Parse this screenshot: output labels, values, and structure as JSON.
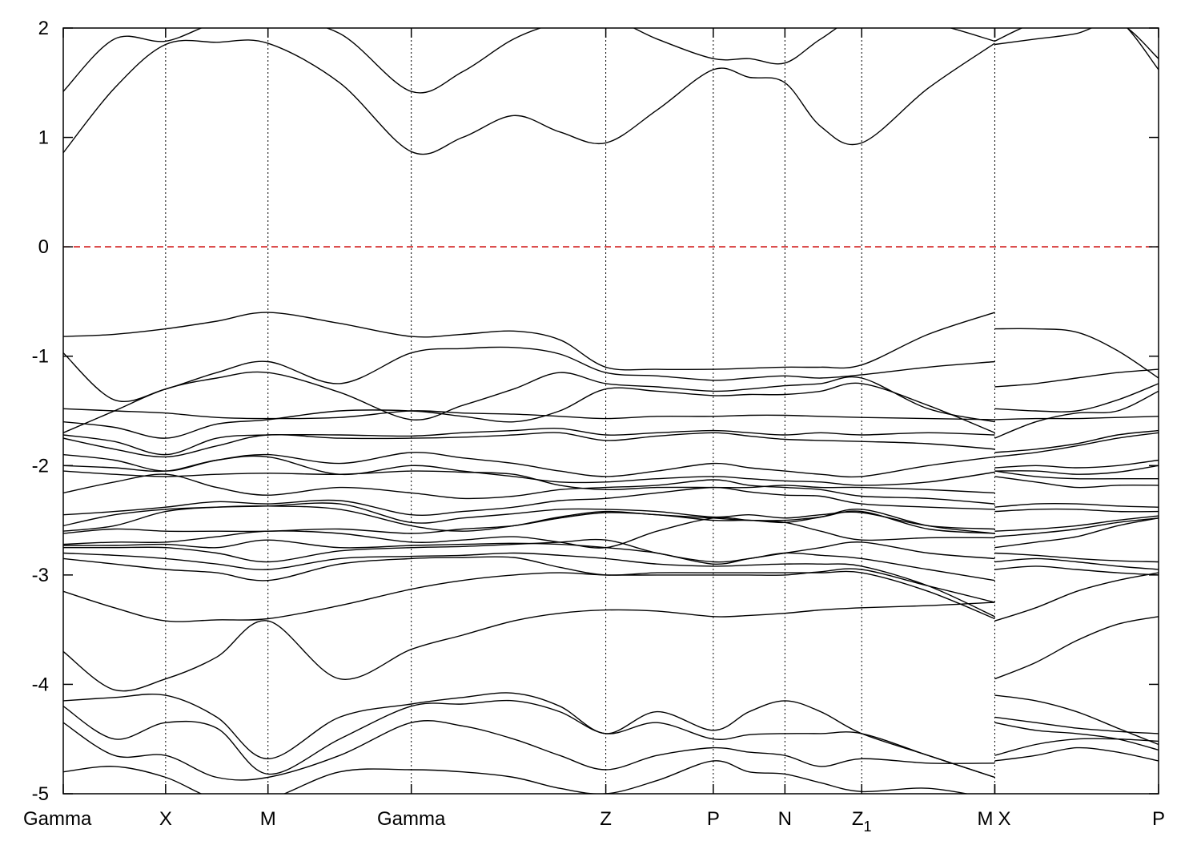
{
  "chart_data": {
    "type": "line",
    "title": "",
    "xlabel": "",
    "ylabel": "",
    "xlim": [
      0,
      10.7
    ],
    "ylim": [
      -5,
      2
    ],
    "yticks": [
      -5,
      -4,
      -3,
      -2,
      -1,
      0,
      1,
      2
    ],
    "ytick_labels": [
      "-5",
      "-4",
      "-3",
      "-2",
      "-1",
      "0",
      "1",
      "2"
    ],
    "grid": false,
    "legend": "none",
    "fermi_level": {
      "y": 0,
      "color": "#cc0000",
      "style": "dashed"
    },
    "line_color": "#000000",
    "kpoints": [
      {
        "x": 0.0,
        "label": "Gamma"
      },
      {
        "x": 1.0,
        "label": "X"
      },
      {
        "x": 2.0,
        "label": "M"
      },
      {
        "x": 3.4,
        "label": "Gamma"
      },
      {
        "x": 5.3,
        "label": "Z"
      },
      {
        "x": 6.35,
        "label": "P"
      },
      {
        "x": 7.05,
        "label": "N"
      },
      {
        "x": 7.8,
        "label": "Z",
        "sub": "1"
      },
      {
        "x": 9.1,
        "label": "M"
      },
      {
        "x": 9.1,
        "label": "X"
      },
      {
        "x": 10.7,
        "label": "P"
      }
    ],
    "segments": [
      {
        "name": "main",
        "x": [
          0.0,
          0.5,
          1.0,
          1.5,
          2.0,
          2.7,
          3.4,
          3.9,
          4.4,
          4.85,
          5.3,
          5.8,
          6.35,
          6.7,
          7.05,
          7.4,
          7.8,
          8.45,
          9.1
        ],
        "bands": [
          [
            1.42,
            1.9,
            1.88,
            2.05,
            2.1,
            1.95,
            1.42,
            1.6,
            1.9,
            2.05,
            2.1,
            1.9,
            1.72,
            1.72,
            1.68,
            1.9,
            2.1,
            2.05,
            1.88
          ],
          [
            0.86,
            1.45,
            1.85,
            1.87,
            1.86,
            1.5,
            0.87,
            1.0,
            1.2,
            1.05,
            0.95,
            1.25,
            1.62,
            1.55,
            1.5,
            1.1,
            0.95,
            1.45,
            1.86
          ],
          [
            -0.82,
            -0.8,
            -0.75,
            -0.68,
            -0.6,
            -0.7,
            -0.82,
            -0.8,
            -0.77,
            -0.85,
            -1.1,
            -1.12,
            -1.12,
            -1.11,
            -1.1,
            -1.1,
            -1.08,
            -0.8,
            -0.6
          ],
          [
            -0.97,
            -1.4,
            -1.3,
            -1.15,
            -1.05,
            -1.25,
            -0.97,
            -0.93,
            -0.92,
            -0.98,
            -1.15,
            -1.18,
            -1.22,
            -1.2,
            -1.18,
            -1.2,
            -1.17,
            -1.1,
            -1.05
          ],
          [
            -1.7,
            -1.5,
            -1.3,
            -1.2,
            -1.15,
            -1.33,
            -1.58,
            -1.45,
            -1.3,
            -1.15,
            -1.25,
            -1.28,
            -1.32,
            -1.3,
            -1.27,
            -1.25,
            -1.2,
            -1.48,
            -1.6
          ],
          [
            -1.6,
            -1.65,
            -1.75,
            -1.62,
            -1.58,
            -1.5,
            -1.5,
            -1.55,
            -1.6,
            -1.5,
            -1.3,
            -1.32,
            -1.36,
            -1.35,
            -1.35,
            -1.32,
            -1.25,
            -1.45,
            -1.7
          ],
          [
            -1.48,
            -1.5,
            -1.52,
            -1.56,
            -1.57,
            -1.56,
            -1.5,
            -1.52,
            -1.53,
            -1.55,
            -1.57,
            -1.55,
            -1.55,
            -1.54,
            -1.54,
            -1.55,
            -1.56,
            -1.57,
            -1.58
          ],
          [
            -1.72,
            -1.78,
            -1.9,
            -1.75,
            -1.72,
            -1.72,
            -1.73,
            -1.7,
            -1.68,
            -1.66,
            -1.72,
            -1.7,
            -1.68,
            -1.7,
            -1.72,
            -1.7,
            -1.72,
            -1.7,
            -1.72
          ],
          [
            -1.75,
            -1.85,
            -1.92,
            -1.82,
            -1.72,
            -1.75,
            -1.75,
            -1.74,
            -1.72,
            -1.7,
            -1.77,
            -1.73,
            -1.7,
            -1.73,
            -1.76,
            -1.77,
            -1.78,
            -1.8,
            -1.85
          ],
          [
            -1.9,
            -1.95,
            -2.05,
            -1.95,
            -1.9,
            -1.98,
            -1.88,
            -1.93,
            -1.98,
            -2.05,
            -2.1,
            -2.05,
            -1.98,
            -2.02,
            -2.05,
            -2.08,
            -2.1,
            -2.0,
            -1.92
          ],
          [
            -2.0,
            -2.02,
            -2.05,
            -1.95,
            -1.92,
            -2.08,
            -2.0,
            -2.05,
            -2.1,
            -2.15,
            -2.15,
            -2.12,
            -2.1,
            -2.12,
            -2.14,
            -2.15,
            -2.18,
            -2.15,
            -2.06
          ],
          [
            -2.05,
            -2.08,
            -2.1,
            -2.08,
            -2.07,
            -2.08,
            -2.05,
            -2.06,
            -2.08,
            -2.18,
            -2.22,
            -2.2,
            -2.2,
            -2.2,
            -2.18,
            -2.2,
            -2.2,
            -2.22,
            -2.25
          ],
          [
            -2.25,
            -2.15,
            -2.08,
            -2.2,
            -2.27,
            -2.2,
            -2.25,
            -2.3,
            -2.28,
            -2.22,
            -2.2,
            -2.18,
            -2.13,
            -2.18,
            -2.2,
            -2.22,
            -2.28,
            -2.3,
            -2.35
          ],
          [
            -2.45,
            -2.42,
            -2.38,
            -2.33,
            -2.35,
            -2.32,
            -2.45,
            -2.42,
            -2.38,
            -2.32,
            -2.3,
            -2.25,
            -2.2,
            -2.24,
            -2.27,
            -2.28,
            -2.35,
            -2.38,
            -2.4
          ],
          [
            -2.55,
            -2.45,
            -2.4,
            -2.38,
            -2.37,
            -2.35,
            -2.52,
            -2.48,
            -2.44,
            -2.4,
            -2.4,
            -2.42,
            -2.47,
            -2.45,
            -2.48,
            -2.45,
            -2.43,
            -2.55,
            -2.58
          ],
          [
            -2.6,
            -2.55,
            -2.42,
            -2.38,
            -2.37,
            -2.4,
            -2.55,
            -2.6,
            -2.55,
            -2.47,
            -2.42,
            -2.45,
            -2.48,
            -2.5,
            -2.5,
            -2.47,
            -2.42,
            -2.58,
            -2.62
          ],
          [
            -2.62,
            -2.58,
            -2.6,
            -2.6,
            -2.6,
            -2.58,
            -2.62,
            -2.58,
            -2.55,
            -2.48,
            -2.43,
            -2.45,
            -2.5,
            -2.5,
            -2.52,
            -2.47,
            -2.4,
            -2.55,
            -2.62
          ],
          [
            -2.72,
            -2.7,
            -2.7,
            -2.65,
            -2.6,
            -2.62,
            -2.7,
            -2.68,
            -2.65,
            -2.7,
            -2.75,
            -2.6,
            -2.48,
            -2.5,
            -2.52,
            -2.6,
            -2.68,
            -2.66,
            -2.66
          ],
          [
            -2.73,
            -2.73,
            -2.72,
            -2.75,
            -2.68,
            -2.75,
            -2.73,
            -2.72,
            -2.71,
            -2.72,
            -2.75,
            -2.8,
            -2.9,
            -2.85,
            -2.8,
            -2.75,
            -2.7,
            -2.8,
            -2.85
          ],
          [
            -2.75,
            -2.75,
            -2.75,
            -2.8,
            -2.88,
            -2.78,
            -2.75,
            -2.74,
            -2.72,
            -2.7,
            -2.68,
            -2.8,
            -2.88,
            -2.85,
            -2.8,
            -2.82,
            -2.85,
            -2.95,
            -3.05
          ],
          [
            -2.8,
            -2.82,
            -2.85,
            -2.9,
            -2.95,
            -2.85,
            -2.83,
            -2.82,
            -2.8,
            -2.82,
            -2.85,
            -2.9,
            -2.92,
            -2.91,
            -2.9,
            -2.9,
            -2.92,
            -3.1,
            -3.38
          ],
          [
            -2.85,
            -2.9,
            -2.95,
            -2.98,
            -3.05,
            -2.9,
            -2.85,
            -2.84,
            -2.84,
            -2.93,
            -3.0,
            -2.98,
            -2.98,
            -2.98,
            -2.98,
            -2.98,
            -2.98,
            -3.15,
            -3.4
          ],
          [
            -3.15,
            -3.3,
            -3.42,
            -3.41,
            -3.4,
            -3.28,
            -3.13,
            -3.05,
            -3.0,
            -2.98,
            -3.0,
            -3.0,
            -3.0,
            -3.0,
            -3.0,
            -2.97,
            -2.95,
            -3.1,
            -3.25
          ],
          [
            -3.7,
            -4.05,
            -3.95,
            -3.75,
            -3.42,
            -3.95,
            -3.68,
            -3.55,
            -3.42,
            -3.35,
            -3.32,
            -3.33,
            -3.38,
            -3.37,
            -3.35,
            -3.32,
            -3.3,
            -3.28,
            -3.25
          ],
          [
            -4.15,
            -4.12,
            -4.1,
            -4.3,
            -4.68,
            -4.3,
            -4.18,
            -4.12,
            -4.08,
            -4.2,
            -4.45,
            -4.25,
            -4.42,
            -4.25,
            -4.15,
            -4.25,
            -4.45,
            -4.65,
            -4.85
          ],
          [
            -4.2,
            -4.5,
            -4.35,
            -4.4,
            -4.82,
            -4.5,
            -4.2,
            -4.18,
            -4.15,
            -4.25,
            -4.45,
            -4.35,
            -4.5,
            -4.46,
            -4.45,
            -4.45,
            -4.45,
            -4.65,
            -4.85
          ],
          [
            -4.35,
            -4.65,
            -4.65,
            -4.85,
            -4.85,
            -4.65,
            -4.35,
            -4.38,
            -4.5,
            -4.65,
            -4.78,
            -4.65,
            -4.58,
            -4.62,
            -4.65,
            -4.75,
            -4.68,
            -4.72,
            -4.72
          ],
          [
            -4.8,
            -4.75,
            -4.85,
            -5.05,
            -5.05,
            -4.8,
            -4.78,
            -4.8,
            -4.85,
            -4.95,
            -5.0,
            -4.88,
            -4.7,
            -4.8,
            -4.82,
            -4.9,
            -4.98,
            -4.95,
            -5.05
          ]
        ]
      },
      {
        "name": "X-P",
        "x": [
          9.1,
          9.5,
          9.9,
          10.3,
          10.7
        ],
        "bands": [
          [
            1.85,
            1.9,
            1.95,
            2.05,
            1.72
          ],
          [
            1.88,
            2.05,
            2.1,
            2.08,
            1.62
          ],
          [
            -0.75,
            -0.75,
            -0.78,
            -0.95,
            -1.2
          ],
          [
            -1.28,
            -1.25,
            -1.2,
            -1.15,
            -1.12
          ],
          [
            -1.48,
            -1.5,
            -1.5,
            -1.4,
            -1.25
          ],
          [
            -1.75,
            -1.6,
            -1.52,
            -1.5,
            -1.32
          ],
          [
            -1.58,
            -1.57,
            -1.57,
            -1.56,
            -1.55
          ],
          [
            -1.88,
            -1.85,
            -1.8,
            -1.72,
            -1.68
          ],
          [
            -1.92,
            -1.88,
            -1.82,
            -1.75,
            -1.7
          ],
          [
            -2.02,
            -2.0,
            -2.02,
            -2.0,
            -1.95
          ],
          [
            -2.05,
            -2.05,
            -2.08,
            -2.06,
            -2.0
          ],
          [
            -2.05,
            -2.1,
            -2.12,
            -2.12,
            -2.12
          ],
          [
            -2.1,
            -2.15,
            -2.2,
            -2.18,
            -2.18
          ],
          [
            -2.38,
            -2.35,
            -2.35,
            -2.37,
            -2.38
          ],
          [
            -2.42,
            -2.4,
            -2.4,
            -2.42,
            -2.42
          ],
          [
            -2.6,
            -2.58,
            -2.55,
            -2.5,
            -2.46
          ],
          [
            -2.65,
            -2.62,
            -2.58,
            -2.52,
            -2.48
          ],
          [
            -2.75,
            -2.7,
            -2.65,
            -2.55,
            -2.48
          ],
          [
            -2.8,
            -2.82,
            -2.85,
            -2.87,
            -2.88
          ],
          [
            -2.88,
            -2.85,
            -2.88,
            -2.92,
            -2.95
          ],
          [
            -2.95,
            -2.92,
            -2.95,
            -2.98,
            -3.0
          ],
          [
            -3.42,
            -3.3,
            -3.15,
            -3.05,
            -2.98
          ],
          [
            -3.95,
            -3.8,
            -3.6,
            -3.45,
            -3.38
          ],
          [
            -4.1,
            -4.15,
            -4.25,
            -4.4,
            -4.55
          ],
          [
            -4.3,
            -4.35,
            -4.4,
            -4.43,
            -4.45
          ],
          [
            -4.35,
            -4.42,
            -4.45,
            -4.5,
            -4.6
          ],
          [
            -4.65,
            -4.55,
            -4.5,
            -4.5,
            -4.52
          ],
          [
            -4.7,
            -4.65,
            -4.58,
            -4.62,
            -4.7
          ]
        ]
      }
    ]
  }
}
